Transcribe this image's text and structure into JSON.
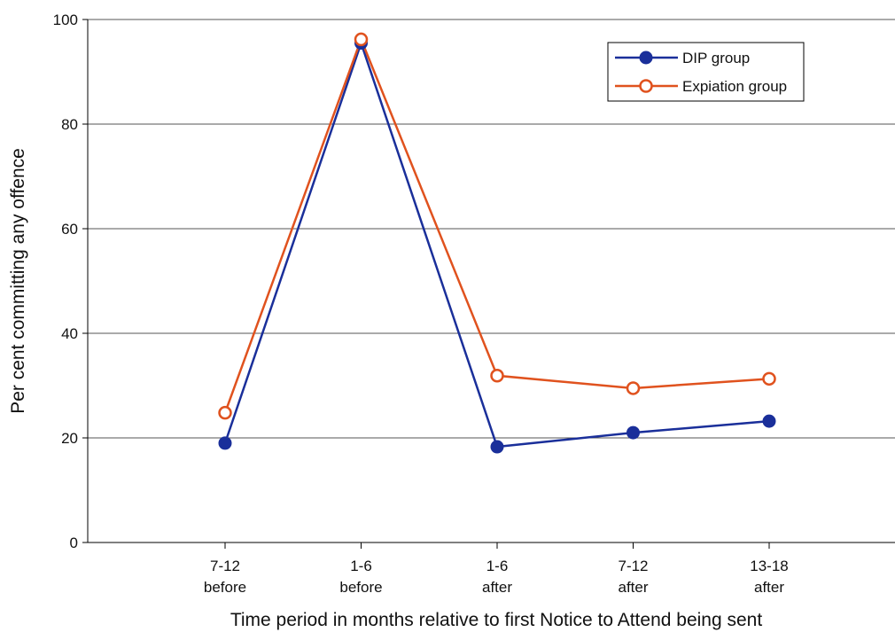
{
  "chart_data": {
    "type": "line",
    "xlabel": "Time period in months relative to first Notice to Attend being sent",
    "ylabel": "Per cent committing any offence",
    "categories": [
      [
        "7-12",
        "before"
      ],
      [
        "1-6",
        "before"
      ],
      [
        "1-6",
        "after"
      ],
      [
        "7-12",
        "after"
      ],
      [
        "13-18",
        "after"
      ]
    ],
    "ylim": [
      0,
      100
    ],
    "yticks": [
      "0",
      "20",
      "40",
      "60",
      "80",
      "100"
    ],
    "grid": true,
    "legend_position": "top-right",
    "series": [
      {
        "name": "DIP group",
        "color": "#1a2f9a",
        "marker": "filled-circle",
        "values": [
          19,
          95.5,
          18.3,
          21,
          23.2
        ]
      },
      {
        "name": "Expiation group",
        "color": "#e0521e",
        "marker": "open-circle",
        "values": [
          24.8,
          96.2,
          31.9,
          29.5,
          31.3
        ]
      }
    ]
  }
}
